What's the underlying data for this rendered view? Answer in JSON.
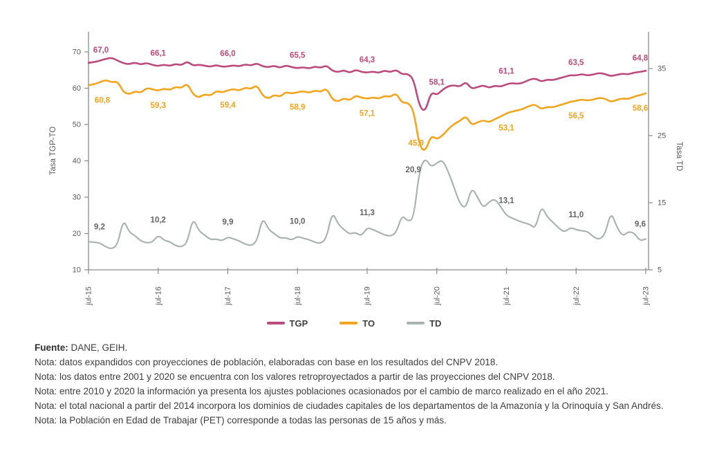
{
  "chart": {
    "left_axis": {
      "title": "Tasa TGP-TO",
      "ticks": [
        10,
        20,
        30,
        40,
        50,
        60,
        70
      ]
    },
    "right_axis": {
      "title": "Tasa TD",
      "ticks": [
        5,
        15,
        25,
        35
      ]
    },
    "x_ticks": [
      "jul-15",
      "jul-16",
      "jul-17",
      "jul-18",
      "jul-19",
      "jul-20",
      "jul-21",
      "jul-22",
      "jul-23"
    ],
    "legend": [
      {
        "name": "TGP",
        "color": "#bd4a7c"
      },
      {
        "name": "TO",
        "color": "#f4a41d"
      },
      {
        "name": "TD",
        "color": "#a9b4b0"
      }
    ]
  },
  "chart_data": {
    "type": "line",
    "frequency": "monthly",
    "x_range": [
      "jul-15",
      "jul-23"
    ],
    "left_axis_label": "Tasa TGP-TO",
    "right_axis_label": "Tasa TD",
    "left_axis_range": [
      10,
      70
    ],
    "right_axis_range": [
      5,
      35
    ],
    "grid": false,
    "legend_position": "bottom",
    "series": [
      {
        "name": "TGP",
        "axis": "left",
        "color": "#bd4a7c",
        "label_color": "#bd4a7c",
        "july_labels": [
          "67,0",
          "66,1",
          "66,0",
          "65,5",
          "64,3",
          "58,1",
          "61,1",
          "63,5",
          "64,8"
        ],
        "july_values": [
          67.0,
          66.1,
          66.0,
          65.5,
          64.3,
          58.1,
          61.1,
          63.5,
          64.8
        ],
        "values": [
          67.0,
          67.2,
          67.6,
          68.1,
          68.4,
          67.6,
          66.9,
          66.6,
          67.1,
          66.5,
          67.0,
          66.4,
          66.1,
          66.5,
          66.1,
          66.7,
          66.3,
          67.4,
          66.2,
          66.5,
          66.2,
          65.9,
          66.4,
          65.9,
          66.0,
          66.3,
          66.0,
          66.6,
          66.2,
          66.9,
          66.0,
          65.8,
          66.2,
          65.6,
          66.3,
          65.8,
          65.5,
          65.8,
          65.4,
          66.0,
          65.6,
          66.3,
          64.8,
          64.4,
          65.0,
          64.2,
          65.1,
          64.5,
          64.3,
          64.6,
          64.2,
          64.9,
          64.4,
          65.1,
          63.8,
          64.0,
          62.5,
          55.0,
          53.4,
          59.0,
          58.1,
          59.6,
          60.6,
          60.8,
          60.4,
          61.8,
          59.8,
          60.3,
          60.8,
          60.1,
          60.7,
          60.4,
          61.1,
          61.4,
          61.2,
          61.6,
          62.4,
          62.7,
          61.8,
          62.4,
          62.2,
          62.7,
          63.1,
          63.6,
          63.5,
          63.9,
          63.5,
          63.8,
          64.2,
          63.9,
          63.3,
          63.7,
          64.0,
          63.8,
          64.3,
          64.5,
          64.8
        ]
      },
      {
        "name": "TO",
        "axis": "left",
        "color": "#f4a41d",
        "label_color": "#f4a41d",
        "july_labels": [
          "60,8",
          "59,3",
          "59,4",
          "58,9",
          "57,1",
          "45,9",
          "53,1",
          "56,5",
          "58,6"
        ],
        "july_values": [
          60.8,
          59.3,
          59.4,
          58.9,
          57.1,
          45.9,
          53.1,
          56.5,
          58.6
        ],
        "values": [
          60.8,
          61.1,
          61.7,
          62.3,
          61.6,
          61.9,
          58.9,
          58.3,
          59.2,
          58.7,
          60.1,
          59.7,
          59.3,
          59.9,
          59.5,
          60.4,
          60.0,
          61.4,
          58.3,
          57.4,
          58.4,
          57.9,
          59.3,
          58.8,
          59.4,
          59.8,
          59.3,
          60.2,
          59.8,
          60.9,
          57.9,
          57.1,
          58.2,
          57.6,
          59.0,
          58.5,
          58.9,
          59.2,
          58.7,
          59.4,
          59.0,
          60.0,
          56.9,
          56.3,
          57.3,
          56.6,
          58.0,
          57.4,
          57.1,
          57.5,
          57.1,
          57.9,
          57.6,
          58.7,
          55.9,
          56.1,
          54.0,
          44.0,
          42.5,
          47.0,
          45.9,
          47.0,
          48.8,
          50.2,
          51.0,
          52.4,
          49.8,
          50.6,
          51.2,
          50.6,
          51.5,
          52.2,
          53.1,
          53.6,
          53.9,
          54.4,
          55.2,
          55.5,
          54.2,
          54.9,
          54.7,
          55.3,
          55.7,
          56.3,
          56.5,
          56.9,
          56.6,
          56.9,
          57.4,
          57.1,
          56.2,
          56.8,
          57.2,
          57.0,
          57.7,
          58.1,
          58.6
        ]
      },
      {
        "name": "TD",
        "axis": "right",
        "color": "#a9b4b0",
        "label_color": "#636363",
        "july_labels": [
          "9,2",
          "10,2",
          "9,9",
          "10,0",
          "11,3",
          "20,9",
          "13,1",
          "11,0",
          "9,6"
        ],
        "july_values": [
          9.2,
          10.2,
          9.9,
          10.0,
          11.3,
          20.9,
          13.1,
          11.0,
          9.6
        ],
        "values": [
          9.2,
          9.1,
          9.0,
          8.4,
          8.1,
          8.7,
          12.6,
          10.6,
          10.1,
          9.3,
          9.0,
          9.1,
          10.2,
          9.4,
          9.2,
          8.6,
          8.4,
          9.0,
          12.8,
          10.8,
          10.2,
          9.5,
          9.6,
          9.3,
          9.9,
          9.6,
          9.3,
          8.8,
          8.6,
          9.2,
          12.9,
          11.0,
          10.4,
          9.7,
          9.8,
          9.4,
          10.0,
          9.7,
          9.5,
          9.1,
          8.9,
          9.7,
          13.7,
          11.8,
          11.0,
          10.3,
          10.6,
          10.0,
          11.3,
          11.0,
          10.6,
          10.2,
          10.0,
          10.5,
          13.2,
          12.2,
          12.6,
          19.9,
          21.7,
          20.3,
          20.9,
          21.4,
          19.6,
          17.2,
          14.8,
          14.1,
          17.3,
          15.9,
          14.2,
          15.1,
          15.6,
          14.4,
          13.1,
          12.7,
          12.3,
          12.0,
          11.8,
          11.1,
          14.6,
          12.9,
          12.1,
          11.2,
          10.6,
          11.3,
          11.0,
          10.8,
          10.7,
          9.9,
          9.5,
          10.3,
          13.7,
          11.4,
          10.0,
          10.7,
          10.5,
          9.3,
          9.6
        ]
      }
    ]
  },
  "notes": {
    "fuente_label": "Fuente:",
    "fuente_text": "DANE, GEIH.",
    "items": [
      "Nota: datos expandidos con proyecciones de población, elaboradas con base en los resultados del CNPV 2018.",
      "Nota: los datos entre 2001 y 2020 se encuentra con los valores retroproyectados a partir de las proyecciones del CNPV 2018.",
      "Nota: entre 2010 y 2020 la información ya presenta los ajustes poblaciones ocasionados por el cambio de marco realizado en el año 2021.",
      "Nota: el total nacional a partir del 2014 incorpora los dominios de ciudades capitales de los departamentos de la Amazonía y la Orinoquía y San Andrés.",
      "Nota: la Población en Edad de Trabajar (PET) corresponde a todas las personas de 15 años y más."
    ]
  }
}
